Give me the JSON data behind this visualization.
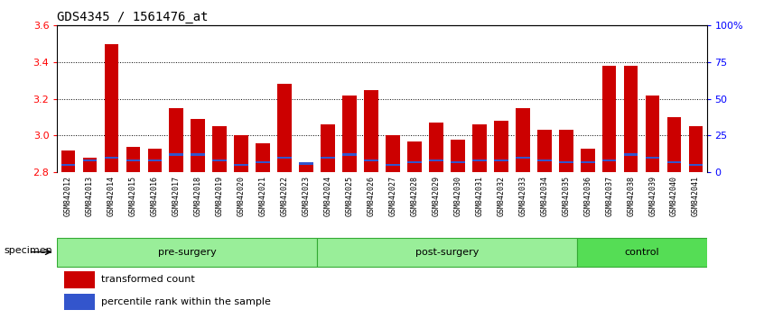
{
  "title": "GDS4345 / 1561476_at",
  "samples": [
    "GSM842012",
    "GSM842013",
    "GSM842014",
    "GSM842015",
    "GSM842016",
    "GSM842017",
    "GSM842018",
    "GSM842019",
    "GSM842020",
    "GSM842021",
    "GSM842022",
    "GSM842023",
    "GSM842024",
    "GSM842025",
    "GSM842026",
    "GSM842027",
    "GSM842028",
    "GSM842029",
    "GSM842030",
    "GSM842031",
    "GSM842032",
    "GSM842033",
    "GSM842034",
    "GSM842035",
    "GSM842036",
    "GSM842037",
    "GSM842038",
    "GSM842039",
    "GSM842040",
    "GSM842041"
  ],
  "transformed_count": [
    2.92,
    2.88,
    3.5,
    2.94,
    2.93,
    3.15,
    3.09,
    3.05,
    3.0,
    2.96,
    3.28,
    2.84,
    3.06,
    3.22,
    3.25,
    3.0,
    2.97,
    3.07,
    2.98,
    3.06,
    3.08,
    3.15,
    3.03,
    3.03,
    2.93,
    3.38,
    3.38,
    3.22,
    3.1,
    3.05
  ],
  "percentile_rank_pct": [
    5,
    8,
    10,
    8,
    8,
    12,
    12,
    8,
    5,
    7,
    10,
    6,
    10,
    12,
    8,
    5,
    7,
    8,
    7,
    8,
    8,
    10,
    8,
    7,
    7,
    8,
    12,
    10,
    7,
    5
  ],
  "y_min": 2.8,
  "y_max": 3.6,
  "y_ticks": [
    2.8,
    3.0,
    3.2,
    3.4,
    3.6
  ],
  "y2_ticks_pct": [
    0,
    25,
    50,
    75,
    100
  ],
  "y2_labels": [
    "0",
    "25",
    "50",
    "75",
    "100%"
  ],
  "bar_color": "#cc0000",
  "blue_color": "#3355cc",
  "bar_width": 0.65,
  "group_bounds": [
    {
      "label": "pre-surgery",
      "start": 0,
      "end": 12,
      "color": "#99ee99"
    },
    {
      "label": "post-surgery",
      "start": 12,
      "end": 24,
      "color": "#99ee99"
    },
    {
      "label": "control",
      "start": 24,
      "end": 30,
      "color": "#55dd55"
    }
  ],
  "specimen_label": "specimen",
  "background_color": "#ffffff",
  "plot_bg_color": "#ffffff",
  "title_fontsize": 10,
  "tick_fontsize": 7,
  "grid_ticks": [
    3.0,
    3.2,
    3.4
  ]
}
